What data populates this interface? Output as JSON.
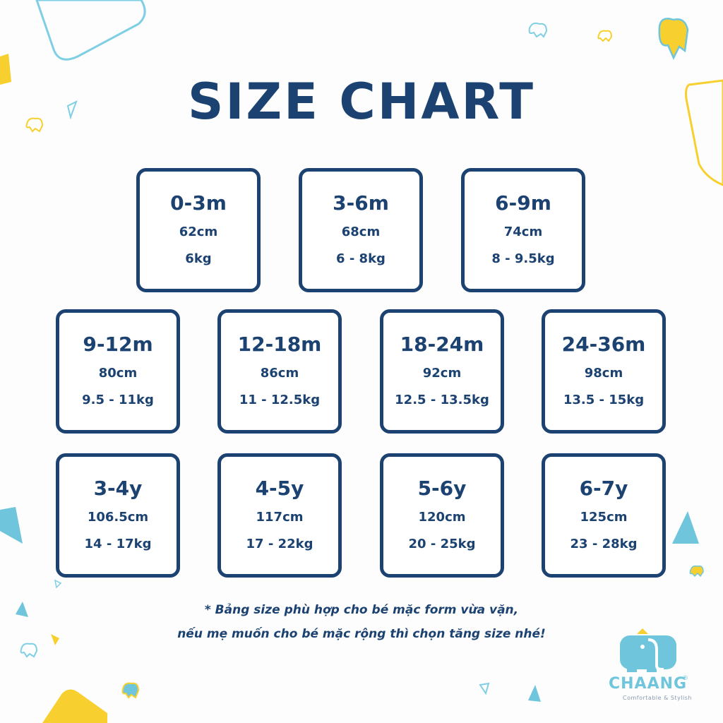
{
  "title": "SIZE CHART",
  "sizes": [
    {
      "age": "0-3m",
      "height": "62cm",
      "weight": "6kg"
    },
    {
      "age": "3-6m",
      "height": "68cm",
      "weight": "6 - 8kg"
    },
    {
      "age": "6-9m",
      "height": "74cm",
      "weight": "8 - 9.5kg"
    },
    {
      "age": "9-12m",
      "height": "80cm",
      "weight": "9.5 - 11kg"
    },
    {
      "age": "12-18m",
      "height": "86cm",
      "weight": "11 - 12.5kg"
    },
    {
      "age": "18-24m",
      "height": "92cm",
      "weight": "12.5 - 13.5kg"
    },
    {
      "age": "24-36m",
      "height": "98cm",
      "weight": "13.5 - 15kg"
    },
    {
      "age": "3-4y",
      "height": "106.5cm",
      "weight": "14 - 17kg"
    },
    {
      "age": "4-5y",
      "height": "117cm",
      "weight": "17 - 22kg"
    },
    {
      "age": "5-6y",
      "height": "120cm",
      "weight": "20 - 25kg"
    },
    {
      "age": "6-7y",
      "height": "125cm",
      "weight": "23 - 28kg"
    }
  ],
  "note": {
    "line1": "* Bảng size phù hợp cho bé mặc form vừa vặn,",
    "line2": "nếu mẹ muốn cho bé mặc rộng thì chọn tăng size nhé!"
  },
  "brand": {
    "name": "CHAANG",
    "registered": "®",
    "tagline": "Comfortable & Stylish"
  },
  "colors": {
    "navy": "#1b4271",
    "sky": "#6fc6dc",
    "yellow": "#f7cf2e"
  }
}
